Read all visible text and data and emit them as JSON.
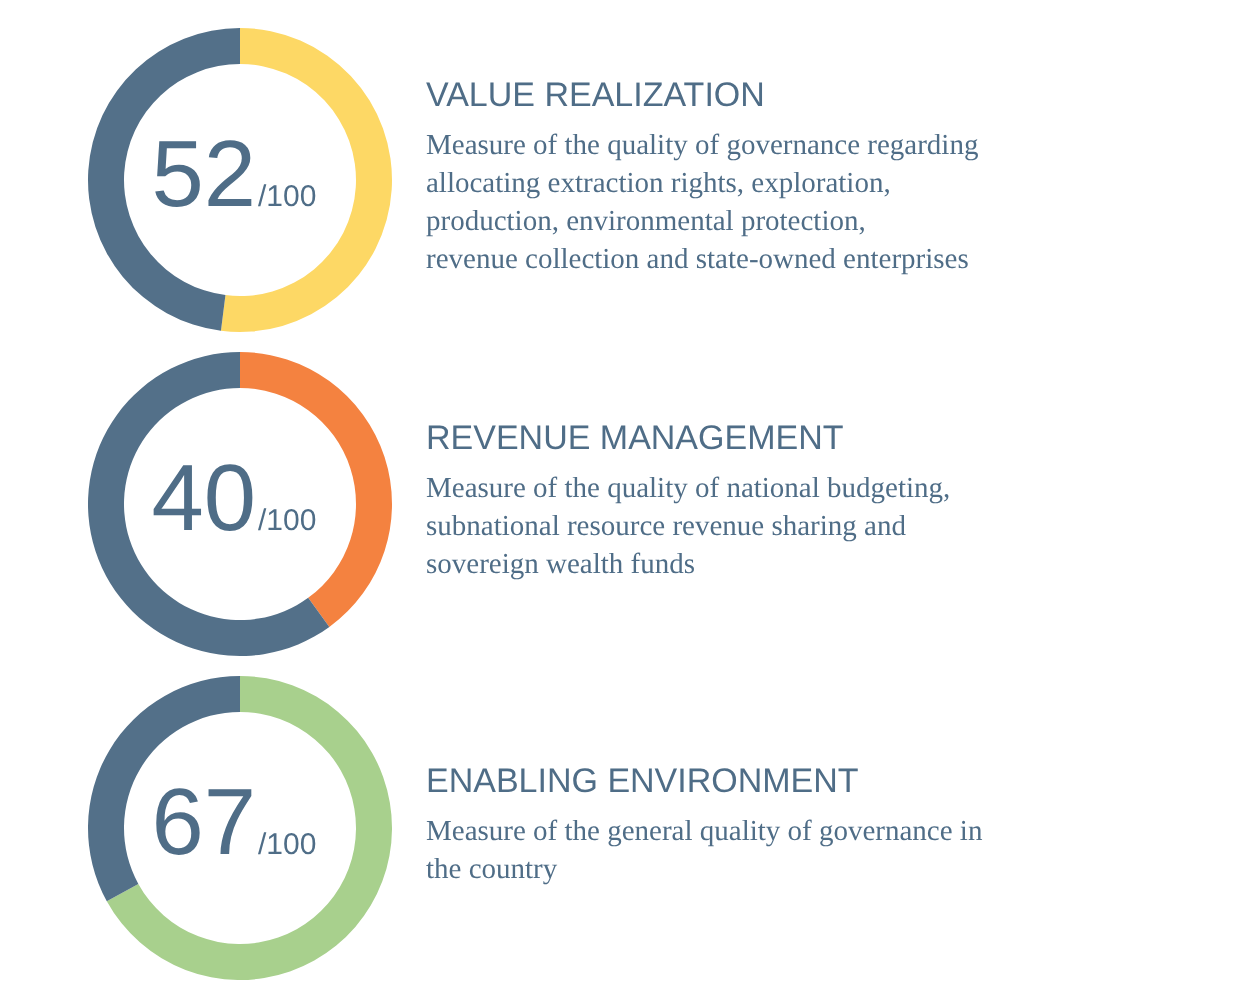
{
  "chart_data": [
    {
      "type": "donut",
      "title": "VALUE REALIZATION",
      "subtitle": "Measure of the quality of governance regarding\nallocating extraction rights, exploration,\nproduction, environmental protection,\nrevenue collection and state-owned enterprises",
      "categories": [
        null,
        null
      ],
      "values": [
        52,
        48
      ],
      "colors": [
        "#fdd865",
        "#537089"
      ],
      "annotations": [
        "52",
        "/100"
      ]
    },
    {
      "type": "donut",
      "title": "REVENUE MANAGEMENT",
      "subtitle": "Measure of the quality of national budgeting,\nsubnational resource revenue sharing and\nsovereign wealth funds",
      "categories": [
        null,
        null
      ],
      "values": [
        40,
        60
      ],
      "colors": [
        "#f48240",
        "#537089"
      ],
      "annotations": [
        "40",
        "/100"
      ]
    },
    {
      "type": "donut",
      "title": "ENABLING ENVIRONMENT",
      "subtitle": "Measure of the general quality of governance in\nthe country",
      "categories": [
        null,
        null
      ],
      "values": [
        67,
        33
      ],
      "colors": [
        "#a8d08d",
        "#537089"
      ],
      "annotations": [
        "67",
        "/100"
      ]
    }
  ]
}
